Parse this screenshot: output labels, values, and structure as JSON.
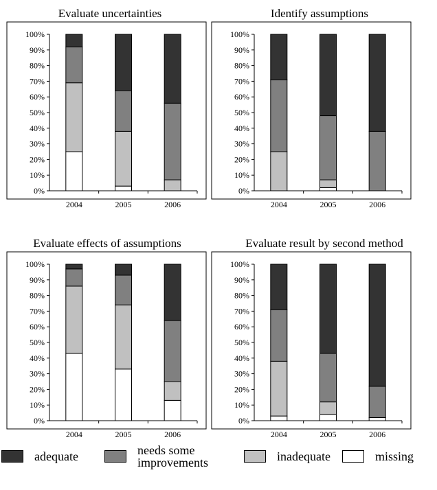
{
  "colors": {
    "adequate": "#333333",
    "needs_some_improvements": "#808080",
    "inadequate": "#c0c0c0",
    "missing": "#ffffff"
  },
  "chart_data": [
    {
      "type": "bar",
      "stacked": true,
      "title": "Evaluate uncertainties",
      "categories": [
        "2004",
        "2005",
        "2006"
      ],
      "ylim": [
        0,
        100
      ],
      "yticks": [
        "0%",
        "10%",
        "20%",
        "30%",
        "40%",
        "50%",
        "60%",
        "70%",
        "80%",
        "90%",
        "100%"
      ],
      "series": [
        {
          "name": "missing",
          "values": [
            25,
            3,
            0
          ]
        },
        {
          "name": "inadequate",
          "values": [
            44,
            35,
            7
          ]
        },
        {
          "name": "needs some improvements",
          "values": [
            23,
            26,
            49
          ]
        },
        {
          "name": "adequate",
          "values": [
            8,
            36,
            44
          ]
        }
      ]
    },
    {
      "type": "bar",
      "stacked": true,
      "title": "Identify assumptions",
      "categories": [
        "2004",
        "2005",
        "2006"
      ],
      "ylim": [
        0,
        100
      ],
      "yticks": [
        "0%",
        "10%",
        "20%",
        "30%",
        "40%",
        "50%",
        "60%",
        "70%",
        "80%",
        "90%",
        "100%"
      ],
      "series": [
        {
          "name": "missing",
          "values": [
            0,
            2,
            0
          ]
        },
        {
          "name": "inadequate",
          "values": [
            25,
            5,
            0
          ]
        },
        {
          "name": "needs some improvements",
          "values": [
            46,
            41,
            38
          ]
        },
        {
          "name": "adequate",
          "values": [
            29,
            52,
            62
          ]
        }
      ]
    },
    {
      "type": "bar",
      "stacked": true,
      "title": "Evaluate effects of assumptions",
      "categories": [
        "2004",
        "2005",
        "2006"
      ],
      "ylim": [
        0,
        100
      ],
      "yticks": [
        "0%",
        "10%",
        "20%",
        "30%",
        "40%",
        "50%",
        "60%",
        "70%",
        "80%",
        "90%",
        "100%"
      ],
      "series": [
        {
          "name": "missing",
          "values": [
            43,
            33,
            13
          ]
        },
        {
          "name": "inadequate",
          "values": [
            43,
            41,
            12
          ]
        },
        {
          "name": "needs some improvements",
          "values": [
            11,
            19,
            39
          ]
        },
        {
          "name": "adequate",
          "values": [
            3,
            7,
            36
          ]
        }
      ]
    },
    {
      "type": "bar",
      "stacked": true,
      "title": "Evaluate result by second method",
      "categories": [
        "2004",
        "2005",
        "2006"
      ],
      "ylim": [
        0,
        100
      ],
      "yticks": [
        "0%",
        "10%",
        "20%",
        "30%",
        "40%",
        "50%",
        "60%",
        "70%",
        "80%",
        "90%",
        "100%"
      ],
      "series": [
        {
          "name": "missing",
          "values": [
            3,
            4,
            2
          ]
        },
        {
          "name": "inadequate",
          "values": [
            35,
            8,
            0
          ]
        },
        {
          "name": "needs some improvements",
          "values": [
            33,
            31,
            20
          ]
        },
        {
          "name": "adequate",
          "values": [
            29,
            57,
            78
          ]
        }
      ]
    }
  ],
  "legend": [
    {
      "key": "adequate",
      "label": "adequate"
    },
    {
      "key": "needs_some_improvements",
      "label": "needs some improvements"
    },
    {
      "key": "inadequate",
      "label": "inadequate"
    },
    {
      "key": "missing",
      "label": "missing"
    }
  ]
}
